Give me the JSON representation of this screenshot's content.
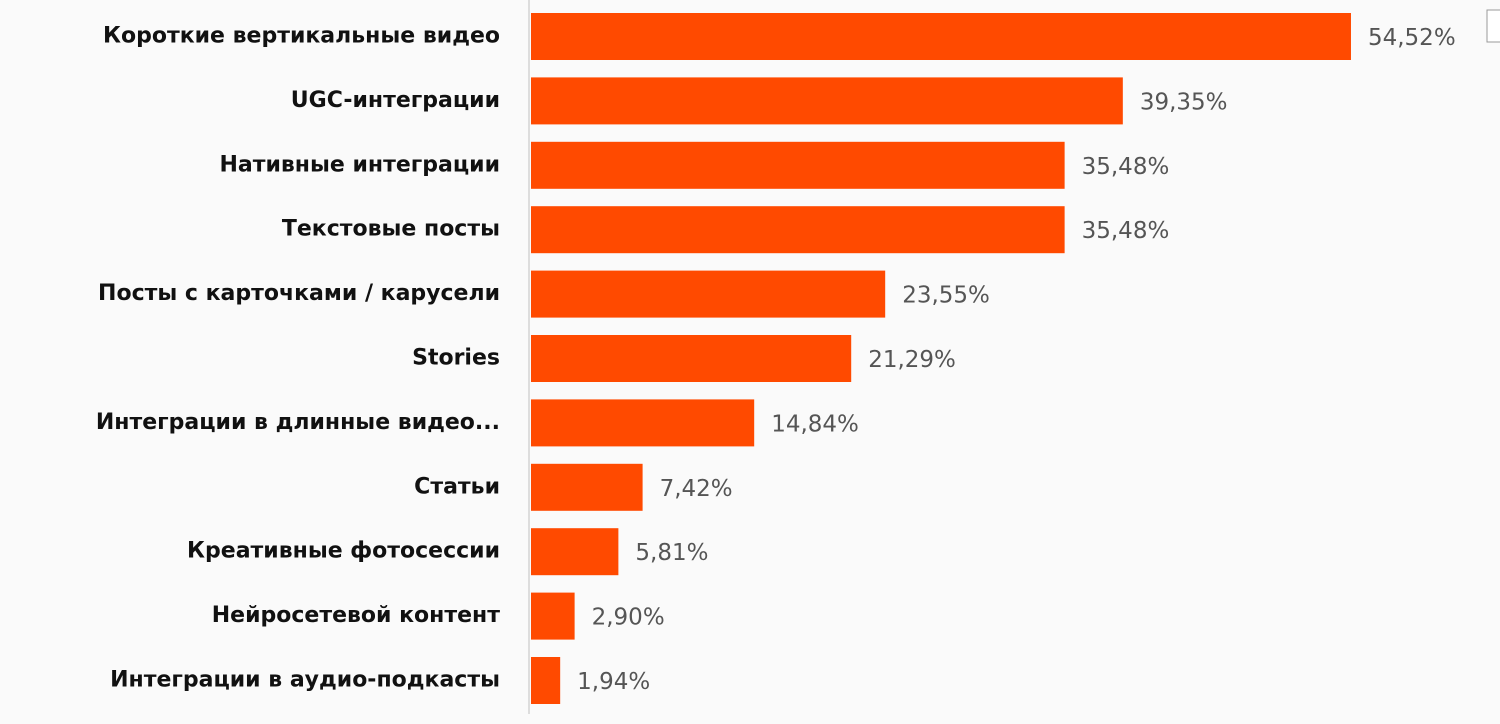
{
  "chart_data": {
    "type": "bar",
    "orientation": "horizontal",
    "categories": [
      "Короткие вертикальные видео",
      "UGC-интеграции",
      "Нативные интеграции",
      "Текстовые посты",
      "Посты с карточками / карусели",
      "Stories",
      "Интеграции в длинные видео...",
      "Статьи",
      "Креативные фотосессии",
      "Нейросетевой контент",
      "Интеграции в аудио-подкасты"
    ],
    "values": [
      54.52,
      39.35,
      35.48,
      35.48,
      23.55,
      21.29,
      14.84,
      7.42,
      5.81,
      2.9,
      1.94
    ],
    "value_labels": [
      "54,52%",
      "39,35%",
      "35,48%",
      "35,48%",
      "23,55%",
      "21,29%",
      "14,84%",
      "7,42%",
      "5,81%",
      "2,90%",
      "1,94%"
    ],
    "color": "#ff4a00"
  }
}
